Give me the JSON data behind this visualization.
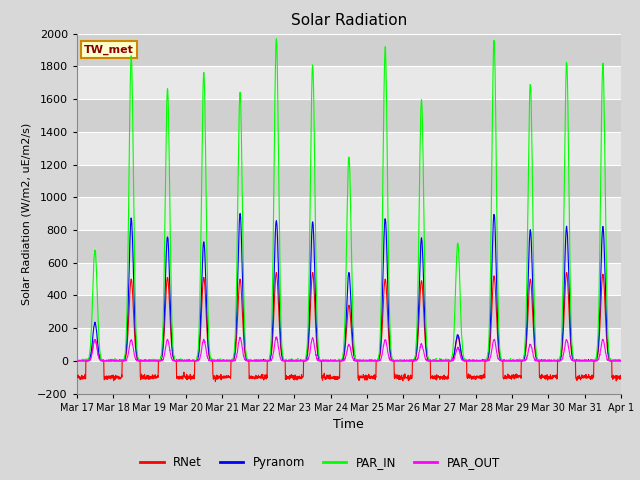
{
  "title": "Solar Radiation",
  "ylabel": "Solar Radiation (W/m2, uE/m2/s)",
  "xlabel": "Time",
  "ylim": [
    -200,
    2000
  ],
  "yticks": [
    -200,
    0,
    200,
    400,
    600,
    800,
    1000,
    1200,
    1400,
    1600,
    1800,
    2000
  ],
  "date_labels": [
    "Mar 17",
    "Mar 18",
    "Mar 19",
    "Mar 20",
    "Mar 21",
    "Mar 22",
    "Mar 23",
    "Mar 24",
    "Mar 25",
    "Mar 26",
    "Mar 27",
    "Mar 28",
    "Mar 29",
    "Mar 30",
    "Mar 31",
    "Apr 1"
  ],
  "station_label": "TW_met",
  "colors": {
    "RNet": "#ff0000",
    "Pyranom": "#0000ff",
    "PAR_IN": "#00ff00",
    "PAR_OUT": "#ff00ff"
  },
  "legend_labels": [
    "RNet",
    "Pyranom",
    "PAR_IN",
    "PAR_OUT"
  ],
  "bg_color": "#d8d8d8",
  "plot_bg_color": "#e8e8e8",
  "stripe_color": "#d0d0d0",
  "grid_color": "#ffffff",
  "n_days": 15,
  "pts_per_day": 144,
  "par_in_peaks": [
    680,
    1860,
    1660,
    1760,
    1640,
    1970,
    1810,
    1250,
    1910,
    1600,
    720,
    1960,
    1700,
    1830,
    1820
  ],
  "pyranom_peaks": [
    230,
    870,
    760,
    730,
    900,
    860,
    850,
    540,
    870,
    750,
    160,
    900,
    800,
    820,
    820
  ],
  "rnet_peaks": [
    130,
    500,
    510,
    510,
    500,
    540,
    540,
    340,
    500,
    490,
    150,
    520,
    500,
    540,
    530
  ],
  "par_out_peaks": [
    130,
    130,
    130,
    130,
    140,
    145,
    140,
    100,
    130,
    100,
    80,
    130,
    100,
    130,
    130
  ],
  "rnet_night": -100,
  "figsize": [
    6.4,
    4.8
  ],
  "dpi": 100
}
